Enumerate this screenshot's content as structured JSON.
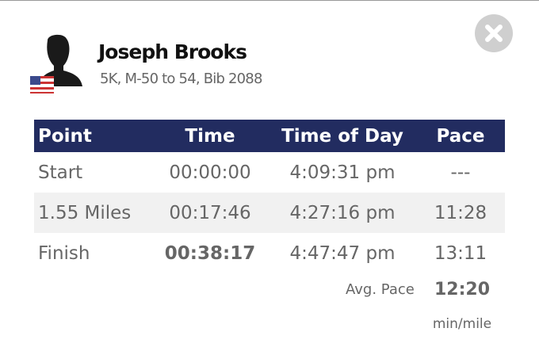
{
  "header": {
    "name": "Joseph Brooks",
    "details": "5K, M-50 to 54, Bib 2088"
  },
  "table": {
    "columns": [
      "Point",
      "Time",
      "Time of Day",
      "Pace"
    ],
    "rows": [
      [
        "Start",
        "00:00:00",
        "4:09:31 pm",
        "---"
      ],
      [
        "1.55 Miles",
        "00:17:46",
        "4:27:16 pm",
        "11:28"
      ],
      [
        "Finish",
        "00:38:17",
        "4:47:47 pm",
        "13:11"
      ]
    ]
  },
  "summary": {
    "label": "Avg. Pace",
    "value": "12:20",
    "unit": "min/mile"
  }
}
